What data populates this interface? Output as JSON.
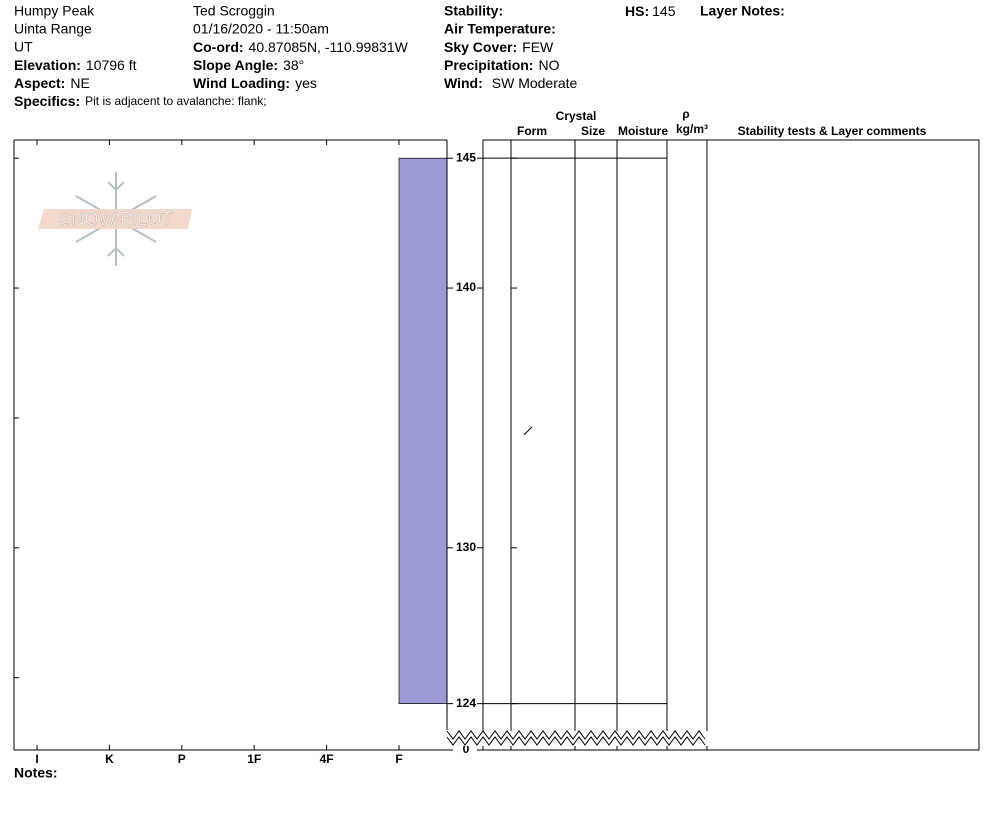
{
  "header": {
    "location": "Humpy Peak",
    "range": "Uinta Range",
    "state": "UT",
    "elevation": {
      "label": "Elevation:",
      "value": "10796 ft"
    },
    "aspect": {
      "label": "Aspect:",
      "value": "NE"
    },
    "specifics": {
      "label": "Specifics:",
      "value": "Pit is adjacent to avalanche: flank;"
    },
    "observer": "Ted Scroggin",
    "datetime": "01/16/2020 - 11:50am",
    "coord": {
      "label": "Co-ord:",
      "value": "40.87085N, -110.99831W"
    },
    "slope_angle": {
      "label": "Slope Angle:",
      "value": "38°"
    },
    "wind_loading": {
      "label": "Wind Loading:",
      "value": "yes"
    },
    "stability": {
      "label": "Stability:"
    },
    "air_temperature": {
      "label": "Air Temperature:"
    },
    "sky_cover": {
      "label": "Sky Cover:",
      "value": "FEW"
    },
    "precipitation": {
      "label": "Precipitation:",
      "value": "NO"
    },
    "wind": {
      "label": "Wind:",
      "value": "SW Moderate"
    },
    "hs": {
      "label": "HS:",
      "value": 145
    },
    "layer_notes": {
      "label": "Layer Notes:"
    }
  },
  "logo": "SNOW PILOT",
  "chart_data": {
    "type": "bar",
    "categories": [
      "I",
      "K",
      "P",
      "1F",
      "4F",
      "F"
    ],
    "layers": [
      {
        "top": 145,
        "bottom": 124,
        "hardness": "F",
        "color": "#9d9ad8"
      }
    ],
    "ylim": [
      122.6,
      145.7
    ],
    "yticks": [
      145,
      140,
      135,
      130,
      125
    ],
    "depth_labels": [
      145,
      140,
      130,
      124,
      0
    ]
  },
  "table": {
    "crystal": "Crystal",
    "columns": [
      "Form",
      "Size",
      "Moisture"
    ],
    "density_symbol": "ρ",
    "density_unit": "kg/m³",
    "comments": "Stability tests & Layer comments"
  },
  "notes": "Notes:"
}
